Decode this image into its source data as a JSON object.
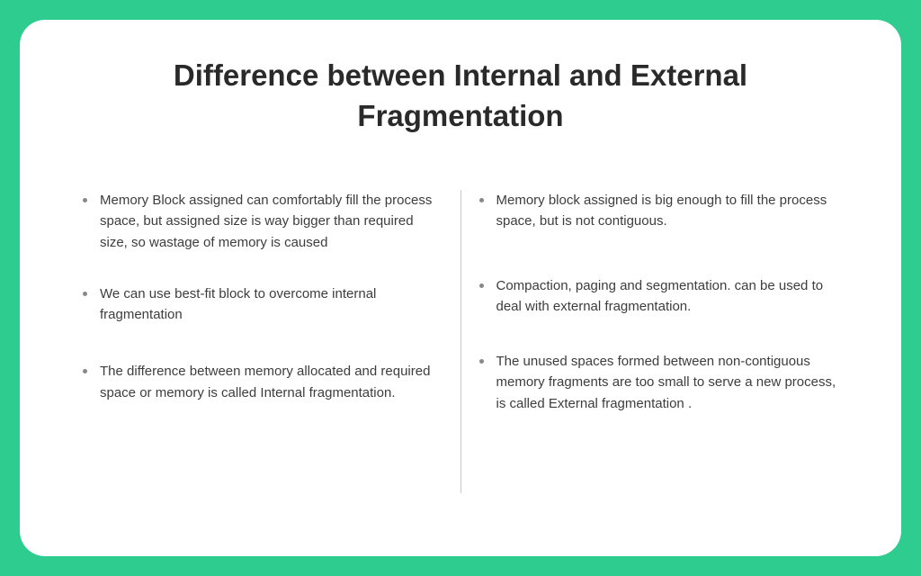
{
  "title": "Difference between Internal and External Fragmentation",
  "background_color": "#2ecc8f",
  "card_background": "#ffffff",
  "card_border_radius": 28,
  "title_fontsize": 33,
  "title_color": "#2a2a2a",
  "text_color": "#3d3d3d",
  "bullet_color": "#888888",
  "divider_color": "#c9c9c9",
  "body_fontsize": 15,
  "left_column": {
    "items": [
      "Memory Block assigned can comfortably fill the process space, but assigned size is way bigger than required size, so wastage of memory is caused",
      "We can use best-fit block to overcome internal fragmentation",
      "The difference between memory allocated and required space or memory is called Internal fragmentation."
    ]
  },
  "right_column": {
    "items": [
      "Memory block assigned is big enough to fill the process space, but is not contiguous.",
      "Compaction, paging and segmentation. can be used to deal with external fragmentation.",
      "The unused spaces formed between non-contiguous memory fragments are too small to serve a new process, is called External fragmentation ."
    ]
  }
}
